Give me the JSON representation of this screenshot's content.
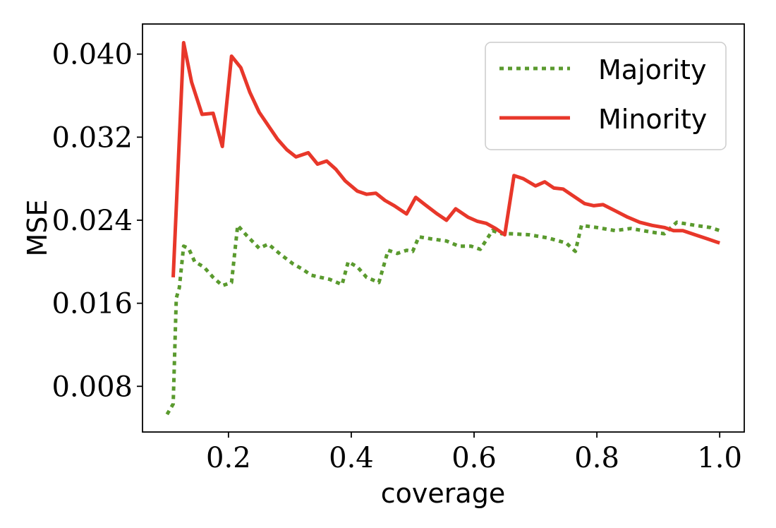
{
  "chart_data": {
    "type": "line",
    "title": "",
    "xlabel": "coverage",
    "ylabel": "MSE",
    "xlim": [
      0.06,
      1.04
    ],
    "ylim": [
      0.0036,
      0.0429
    ],
    "xticks": [
      0.2,
      0.4,
      0.6,
      0.8,
      1.0
    ],
    "xtick_labels": [
      "0.2",
      "0.4",
      "0.6",
      "0.8",
      "1.0"
    ],
    "yticks": [
      0.008,
      0.016,
      0.024,
      0.032,
      0.04
    ],
    "ytick_labels": [
      "0.008",
      "0.016",
      "0.024",
      "0.032",
      "0.040"
    ],
    "grid": false,
    "legend": "top-right",
    "series": [
      {
        "name": "Majority",
        "color": "#5a9a2e",
        "style": "dotted",
        "x": [
          0.1,
          0.11,
          0.115,
          0.12,
          0.127,
          0.135,
          0.145,
          0.16,
          0.175,
          0.19,
          0.205,
          0.215,
          0.23,
          0.25,
          0.265,
          0.285,
          0.305,
          0.32,
          0.335,
          0.35,
          0.365,
          0.385,
          0.395,
          0.41,
          0.425,
          0.445,
          0.46,
          0.475,
          0.49,
          0.5,
          0.51,
          0.53,
          0.555,
          0.575,
          0.595,
          0.61,
          0.63,
          0.645,
          0.66,
          0.69,
          0.72,
          0.75,
          0.765,
          0.775,
          0.8,
          0.83,
          0.855,
          0.875,
          0.895,
          0.91,
          0.93,
          0.96,
          0.985,
          1.0
        ],
        "y": [
          0.0053,
          0.0063,
          0.0165,
          0.0175,
          0.0215,
          0.0213,
          0.02,
          0.0195,
          0.0185,
          0.0177,
          0.018,
          0.0235,
          0.0225,
          0.0213,
          0.0217,
          0.0207,
          0.0198,
          0.0193,
          0.0187,
          0.0185,
          0.0183,
          0.0178,
          0.02,
          0.0195,
          0.0185,
          0.018,
          0.0211,
          0.0208,
          0.0211,
          0.021,
          0.0224,
          0.0222,
          0.022,
          0.0215,
          0.0215,
          0.0212,
          0.023,
          0.0227,
          0.0227,
          0.0226,
          0.0223,
          0.0218,
          0.021,
          0.0235,
          0.0233,
          0.023,
          0.0232,
          0.023,
          0.0228,
          0.0227,
          0.0238,
          0.0235,
          0.0233,
          0.023
        ]
      },
      {
        "name": "Minority",
        "color": "#e8372a",
        "style": "solid",
        "x": [
          0.11,
          0.127,
          0.14,
          0.157,
          0.175,
          0.19,
          0.205,
          0.22,
          0.235,
          0.25,
          0.265,
          0.28,
          0.295,
          0.31,
          0.33,
          0.345,
          0.36,
          0.375,
          0.39,
          0.41,
          0.425,
          0.44,
          0.455,
          0.47,
          0.49,
          0.505,
          0.52,
          0.54,
          0.555,
          0.57,
          0.59,
          0.605,
          0.62,
          0.635,
          0.65,
          0.665,
          0.68,
          0.7,
          0.715,
          0.73,
          0.745,
          0.76,
          0.78,
          0.795,
          0.81,
          0.83,
          0.85,
          0.87,
          0.89,
          0.91,
          0.925,
          0.94,
          0.96,
          0.98,
          1.0
        ],
        "y": [
          0.0185,
          0.0411,
          0.0373,
          0.0342,
          0.0343,
          0.0311,
          0.0398,
          0.0387,
          0.0363,
          0.0344,
          0.0331,
          0.0318,
          0.0308,
          0.0301,
          0.0305,
          0.0294,
          0.0297,
          0.0289,
          0.0278,
          0.0268,
          0.0265,
          0.0266,
          0.0259,
          0.0254,
          0.0246,
          0.0262,
          0.0255,
          0.0246,
          0.024,
          0.0251,
          0.0243,
          0.0239,
          0.0237,
          0.0232,
          0.0226,
          0.0283,
          0.028,
          0.0273,
          0.0277,
          0.0271,
          0.027,
          0.0264,
          0.0256,
          0.0254,
          0.0255,
          0.0249,
          0.0243,
          0.0238,
          0.0235,
          0.0233,
          0.023,
          0.023,
          0.0226,
          0.0222,
          0.0218
        ]
      }
    ]
  }
}
